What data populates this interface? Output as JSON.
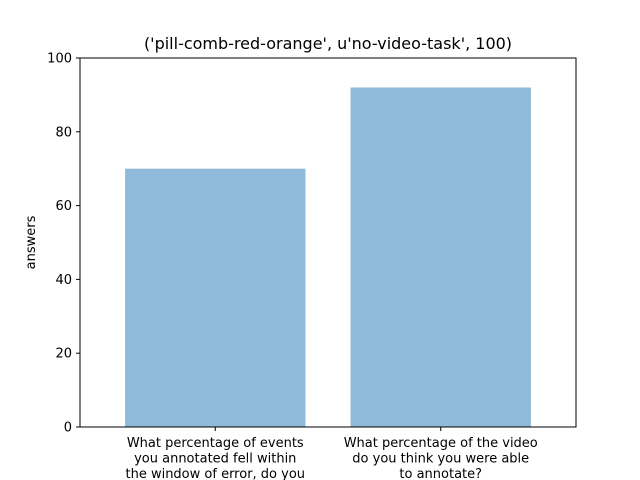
{
  "chart_data": {
    "type": "bar",
    "title": "('pill-comb-red-orange', u'no-video-task', 100)",
    "xlabel": "",
    "ylabel": "answers",
    "ylim": [
      0,
      100
    ],
    "yticks": [
      0,
      20,
      40,
      60,
      80,
      100
    ],
    "categories": [
      [
        "What percentage of events",
        "you annotated fell within",
        "the window of error, do you"
      ],
      [
        "What percentage of the video",
        "do you think you were able",
        "to annotate?"
      ]
    ],
    "values": [
      70,
      92
    ],
    "bar_color": "#8fbad9",
    "grid": false,
    "legend": "none"
  }
}
